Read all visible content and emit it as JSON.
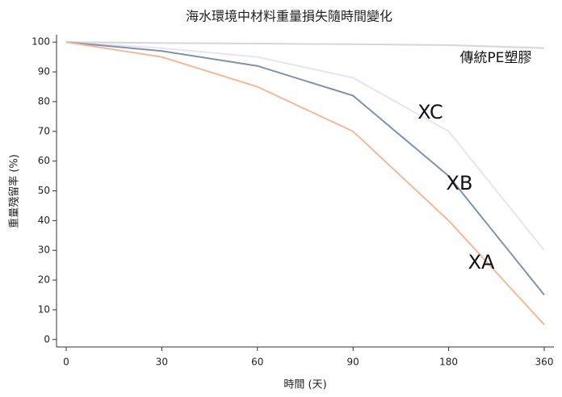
{
  "chart_data": {
    "type": "line",
    "title": "海水環境中材料重量損失隨時間變化",
    "x_label": "時間 (天)",
    "y_label": "重量殘留率 (%)",
    "categories": [
      "0",
      "30",
      "60",
      "90",
      "180",
      "360"
    ],
    "series": [
      {
        "name": "傳統PE塑膠",
        "color": "#d6d6d6",
        "values": [
          100,
          99.7,
          99.5,
          99.3,
          99,
          98
        ]
      },
      {
        "name": "XC",
        "color": "#e4e4f8",
        "values": [
          100,
          98,
          95,
          88,
          70,
          30
        ]
      },
      {
        "name": "XB",
        "color": "#8391a6",
        "values": [
          100,
          97,
          92,
          82,
          55,
          15
        ]
      },
      {
        "name": "XA",
        "color": "#f5b896",
        "values": [
          100,
          95,
          85,
          70,
          40,
          5
        ]
      }
    ],
    "ylim": [
      -2.5,
      102.5
    ],
    "yticks": [
      0,
      10,
      20,
      30,
      40,
      50,
      60,
      70,
      80,
      90,
      100
    ],
    "grid": false
  }
}
